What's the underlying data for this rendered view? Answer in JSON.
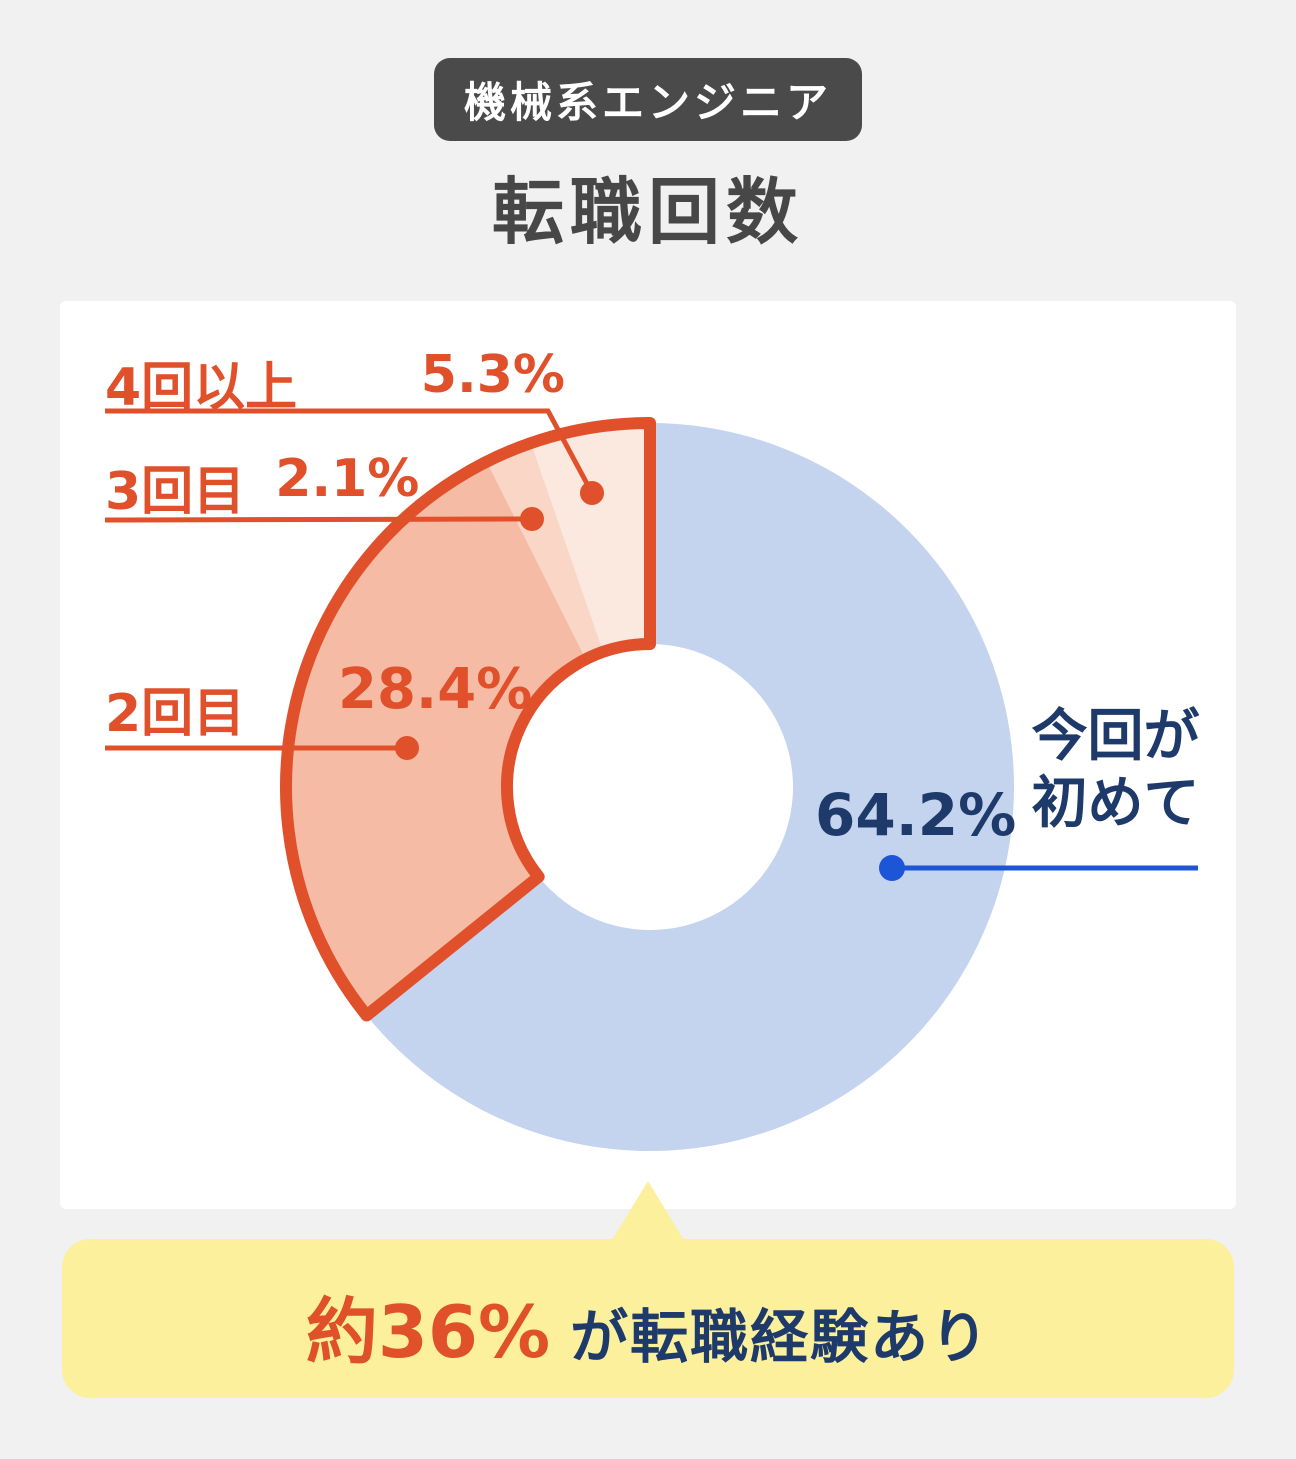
{
  "header": {
    "badge": "機械系エンジニア",
    "title": "転職回数"
  },
  "chart_data": {
    "type": "pie",
    "donut": true,
    "title": "転職回数",
    "category_badge": "機械系エンジニア",
    "start_angle_deg_clockwise_from_top": 0,
    "segments": [
      {
        "label": "今回が初めて",
        "value": 64.2,
        "display": "64.2%",
        "color": "#C4D3EE",
        "group": "first"
      },
      {
        "label": "2回目",
        "value": 28.4,
        "display": "28.4%",
        "color": "#F6BBA4",
        "group": "experienced"
      },
      {
        "label": "3回目",
        "value": 2.1,
        "display": "2.1%",
        "color": "#F9D6C6",
        "group": "experienced"
      },
      {
        "label": "4回以上",
        "value": 5.3,
        "display": "5.3%",
        "color": "#FBE8DE",
        "group": "experienced"
      }
    ],
    "group_outline_color": "#E0502A",
    "legend_position": "callout-labels",
    "annotation": "約36% が転職経験あり"
  },
  "first_label_lines": {
    "line1": "今回が",
    "line2": "初めて"
  },
  "callout": {
    "highlight": "約36%",
    "rest": "が転職経験あり"
  },
  "colors": {
    "accent_orange": "#E0502A",
    "navy": "#1E3A6B",
    "royal_blue": "#1C55D6",
    "blue_fill": "#C4D3EE",
    "salmon_fill": "#F6BBA4",
    "pale_fill_3rd": "#F9D6C6",
    "pale_fill_4plus": "#FBE8DE",
    "banner_yellow": "#FCF09D",
    "badge_gray": "#4A4A4B",
    "page_bg": "#F1F1F2"
  }
}
